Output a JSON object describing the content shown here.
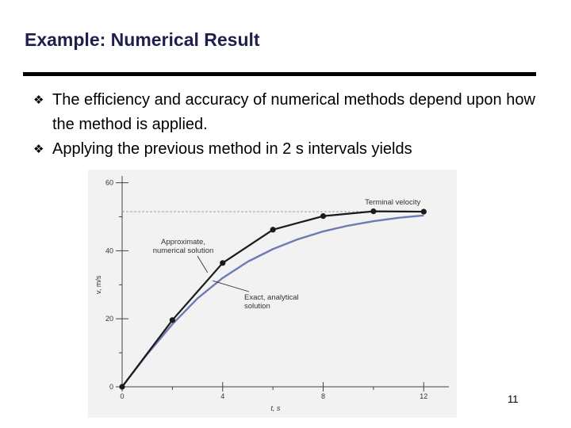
{
  "slide": {
    "title": "Example: Numerical Result",
    "bullets": [
      "The efficiency and accuracy of numerical methods depend upon how the method is applied.",
      "Applying the previous method in 2 s intervals yields"
    ],
    "page_number": "11"
  },
  "chart_data": {
    "type": "line",
    "xlabel": "t, s",
    "ylabel": "v, m/s",
    "xlim": [
      0,
      13
    ],
    "ylim": [
      0,
      62
    ],
    "x_ticks": [
      0,
      4,
      8,
      12
    ],
    "y_ticks": [
      0,
      20,
      40,
      60
    ],
    "grid": false,
    "series": [
      {
        "name": "Approximate, numerical solution",
        "x": [
          0,
          2,
          4,
          6,
          8,
          10,
          12
        ],
        "y": [
          0,
          19.62,
          36.4,
          46.2,
          50.2,
          51.6,
          51.5
        ],
        "markers": true,
        "color": "#1a1a1a"
      },
      {
        "name": "Exact, analytical solution",
        "x": [
          0,
          1,
          2,
          3,
          4,
          5,
          6,
          7,
          8,
          9,
          10,
          11,
          12
        ],
        "y": [
          0,
          9.6,
          18.4,
          26.0,
          32.0,
          36.8,
          40.5,
          43.4,
          45.7,
          47.4,
          48.7,
          49.7,
          50.4
        ],
        "markers": false,
        "color": "#6f7ab5"
      }
    ],
    "reference_line": {
      "label": "Terminal velocity",
      "y": 51.5,
      "color": "#8a8fb8"
    },
    "annotations": [
      {
        "lines": [
          "Approximate,",
          "numerical solution"
        ]
      },
      {
        "lines": [
          "Exact, analytical",
          "solution"
        ]
      }
    ]
  }
}
